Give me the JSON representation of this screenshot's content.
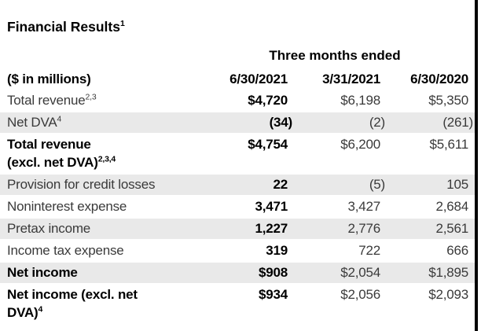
{
  "title": {
    "text": "Financial Results",
    "sup": "1"
  },
  "table": {
    "period_header": "Three months ended",
    "units_label": "($ in millions)",
    "columns": [
      "6/30/2021",
      "3/31/2021",
      "6/30/2020"
    ],
    "rows": [
      {
        "label_lines": [
          "Total revenue"
        ],
        "sup": "2,3",
        "bold_label": false,
        "shaded": false,
        "values": [
          "$4,720",
          "$6,198",
          "$5,350"
        ]
      },
      {
        "label_lines": [
          "Net DVA"
        ],
        "sup": "4",
        "bold_label": false,
        "shaded": true,
        "values": [
          "(34)",
          "(2)",
          "(261)"
        ]
      },
      {
        "label_lines": [
          "Total revenue",
          "(excl. net DVA)"
        ],
        "sup": "2,3,4",
        "bold_label": true,
        "shaded": false,
        "values": [
          "$4,754",
          "$6,200",
          "$5,611"
        ]
      },
      {
        "label_lines": [
          "Provision for credit losses"
        ],
        "sup": "",
        "bold_label": false,
        "shaded": true,
        "values": [
          "22",
          "(5)",
          "105"
        ]
      },
      {
        "label_lines": [
          "Noninterest expense"
        ],
        "sup": "",
        "bold_label": false,
        "shaded": false,
        "values": [
          "3,471",
          "3,427",
          "2,684"
        ]
      },
      {
        "label_lines": [
          "Pretax income"
        ],
        "sup": "",
        "bold_label": false,
        "shaded": true,
        "values": [
          "1,227",
          "2,776",
          "2,561"
        ]
      },
      {
        "label_lines": [
          "Income tax expense"
        ],
        "sup": "",
        "bold_label": false,
        "shaded": false,
        "values": [
          "319",
          "722",
          "666"
        ]
      },
      {
        "label_lines": [
          "Net income"
        ],
        "sup": "",
        "bold_label": true,
        "shaded": true,
        "values": [
          "$908",
          "$2,054",
          "$1,895"
        ]
      },
      {
        "label_lines": [
          "Net income (excl. net",
          "DVA)"
        ],
        "sup": "4",
        "bold_label": true,
        "shaded": false,
        "values": [
          "$934",
          "$2,056",
          "$2,093"
        ]
      }
    ]
  },
  "colors": {
    "stripe": "#e9e9e9",
    "border": "#000000",
    "bold_text": "#000000",
    "regular_text": "#3a3a3a"
  }
}
